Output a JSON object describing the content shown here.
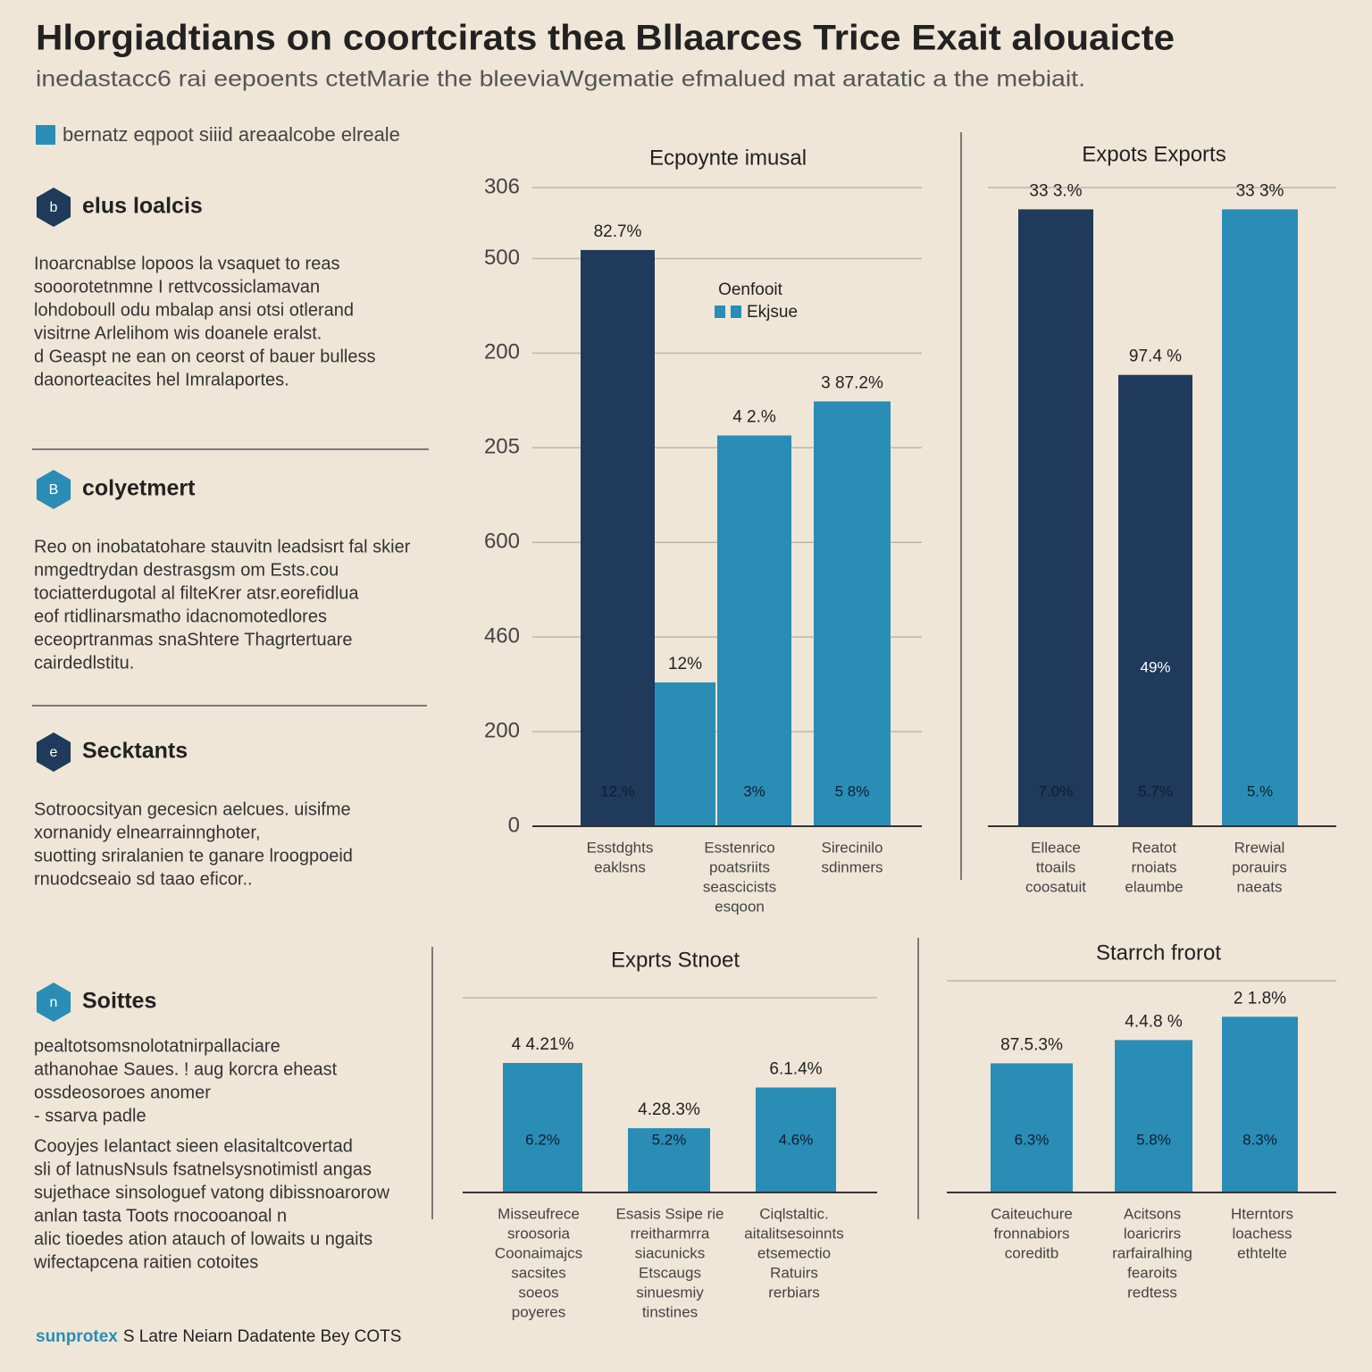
{
  "title": "Hlorgiadtians on coortcirats thea Bllaarces Trice Exait alouaicte",
  "subtitle": "inedastacc6 rai eepoents ctetMarie the bleeviaWgematie efmalued mat aratatic a the mebiait.",
  "legend": "bernatz eqpoot siiid areaalcobe elreale",
  "sections": [
    {
      "icon": "b",
      "heading": "elus loalcis",
      "paragraphs": [
        [
          "Inoarcnablse lopoos la vsaquet to reas",
          "sooorotetnmne I rettvcossiclamavan",
          "lohdoboull odu mbalap ansi otsi otlerand",
          "visitrne Arlelihom wis doanele eralst.",
          "d Geaspt ne ean on ceorst of bauer bulless",
          "daonorteacites hel Imralaportes."
        ]
      ]
    },
    {
      "icon": "B",
      "heading": "colyetmert",
      "paragraphs": [
        [
          "Reo on inobatatohare stauvitn leadsisrt fal skier",
          "nmgedtrydan destrasgsm om Ests.cou",
          "tociatterdugotal al filteKrer atsr.eorefidlua",
          "eof rtidlinarsmatho idacnomotedlores",
          "eceoprtranmas snaShtere Thagrtertuare",
          "cairdedlstitu."
        ]
      ]
    },
    {
      "icon": "e",
      "heading": "Secktants",
      "paragraphs": [
        [
          "Sotroocsityan gecesicn aelcues. uisifme",
          "xornanidy elnearrainnghoter,",
          "suotting sriralanien te ganare lroogpoeid",
          "rnuodcseaio sd taao eficor.."
        ]
      ]
    },
    {
      "icon": "n",
      "heading": "Soittes",
      "paragraphs": [
        [
          "pealtotsomsnolotatnirpallaciare",
          "athanohae Saues. ! aug korcra eheast",
          "ossdeosoroes anomer",
          "- ssarva padle"
        ],
        [
          "Cooyjes Ielantact sieen elasitaltcovertad",
          "sli of latnusNsuls fsatnelsysnotimistl angas",
          "sujethace sinsologuef vatong dibissnoarorow",
          "anlan tasta Toots rnocooanoal n",
          "alic tioedes ation atauch of lowaits u ngaits",
          "wifectapcena raitien cotoites"
        ]
      ]
    }
  ],
  "footer": {
    "source_label": "sunprotex",
    "text": "S Latre Neiarn Dadatente Bey COTS"
  },
  "chart_data": [
    {
      "type": "bar",
      "title": "Ecpoynte imusal",
      "categories": [
        [
          "Esstdghts",
          "eaklsns"
        ],
        null,
        [
          "Esstenrico",
          "poatsriits",
          "seascicists",
          "esqoon"
        ],
        [
          "Sirecinilo",
          "sdinmers"
        ]
      ],
      "values": [
        609,
        152,
        413,
        449
      ],
      "colors": [
        "#1f3a5a",
        "#2a8db5",
        "#2a8db5",
        "#2a8db5"
      ],
      "top_labels": [
        "82.7%",
        "12%",
        "4 2.%",
        "3 87.2%"
      ],
      "inner_labels": [
        "12.%",
        null,
        "3%",
        "5 8%"
      ],
      "legend_title": "Oenfooit",
      "legend_label": "Ekjsue",
      "ylim": [
        0,
        675
      ],
      "yticks": [
        0,
        {
          "value": 100,
          "label": "200"
        },
        {
          "value": 200,
          "label": "460"
        },
        {
          "value": 300,
          "label": "600"
        },
        {
          "value": 400,
          "label": "205"
        },
        {
          "value": 500,
          "label": "200"
        },
        {
          "value": 600,
          "label": "500"
        },
        {
          "value": 675,
          "label": "306"
        }
      ],
      "grid": true
    },
    {
      "type": "bar",
      "title": "Expots Exports",
      "categories": [
        [
          "Elleace",
          "ttoails",
          "coosatuit"
        ],
        [
          "Reatot",
          "rnoiats",
          "elaumbe"
        ],
        [
          "Rrewial",
          "porauirs",
          "naeats"
        ]
      ],
      "values": [
        652,
        477,
        652
      ],
      "colors": [
        "#1f3a5a",
        "#1f3a5a",
        "#2a8db5"
      ],
      "top_labels": [
        "33 3.%",
        "97.4 %",
        "33 3%"
      ],
      "mid_labels": [
        null,
        "49%",
        null
      ],
      "inner_labels": [
        "7.0%",
        "5.7%",
        "5.%"
      ],
      "ylim": [
        0,
        675
      ]
    },
    {
      "type": "bar",
      "title": "Exprts Stnoet",
      "categories": [
        [
          "Misseufrece",
          "sroosoria",
          "Coonaimajcs",
          "sacsites",
          "soeos",
          "poyeres"
        ],
        [
          "Esasis Ssipe rie",
          "rreitharmrra",
          "siacunicks",
          "Etscaugs",
          "sinuesmiy",
          "tinstines"
        ],
        [
          "Ciqlstaltic.",
          "aitalitsesoinnts",
          "etsemectio",
          "Ratuirs",
          "rerbiars"
        ]
      ],
      "values": [
        66.5,
        33,
        53.9
      ],
      "colors": [
        "#2a8db5",
        "#2a8db5",
        "#2a8db5"
      ],
      "top_labels": [
        "4 4.21%",
        "4.28.3%",
        "6.1.4%"
      ],
      "inner_labels": [
        "6.2%",
        "5.2%",
        "4.6%"
      ],
      "ylim": [
        0,
        100
      ]
    },
    {
      "type": "bar",
      "title": "Starrch frorot",
      "categories": [
        [
          "Caiteuchure",
          "fronnabiors",
          "coreditb"
        ],
        [
          "Acitsons",
          "loaricrirs",
          "rarfairalhing",
          "fearoits",
          "redtess"
        ],
        [
          "Hterntors",
          "loachess",
          "ethtelte"
        ]
      ],
      "values": [
        61,
        72,
        83
      ],
      "colors": [
        "#2a8db5",
        "#2a8db5",
        "#2a8db5"
      ],
      "top_labels": [
        "87.5.3%",
        "4.4.8 %",
        "2 1.8%"
      ],
      "inner_labels": [
        "6.3%",
        "5.8%",
        "8.3%"
      ],
      "ylim": [
        0,
        100
      ]
    }
  ]
}
